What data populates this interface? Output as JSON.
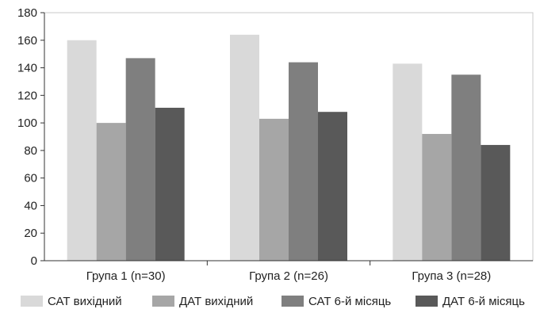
{
  "chart_data": {
    "type": "bar",
    "title": "",
    "xlabel": "",
    "ylabel": "",
    "ylim": [
      0,
      180
    ],
    "yticks": [
      0,
      20,
      40,
      60,
      80,
      100,
      120,
      140,
      160,
      180
    ],
    "grid": false,
    "legend_position": "bottom",
    "categories": [
      "Група 1 (n=30)",
      "Група 2 (n=26)",
      "Група 3 (n=28)"
    ],
    "series": [
      {
        "name": "САТ вихідний",
        "color": "#d9d9d9",
        "values": [
          160,
          164,
          143
        ]
      },
      {
        "name": "ДАТ вихідний",
        "color": "#a6a6a6",
        "values": [
          100,
          103,
          92
        ]
      },
      {
        "name": "САТ 6-й місяць",
        "color": "#7f7f7f",
        "values": [
          147,
          144,
          135
        ]
      },
      {
        "name": "ДАТ 6-й місяць",
        "color": "#595959",
        "values": [
          111,
          108,
          84
        ]
      }
    ]
  }
}
